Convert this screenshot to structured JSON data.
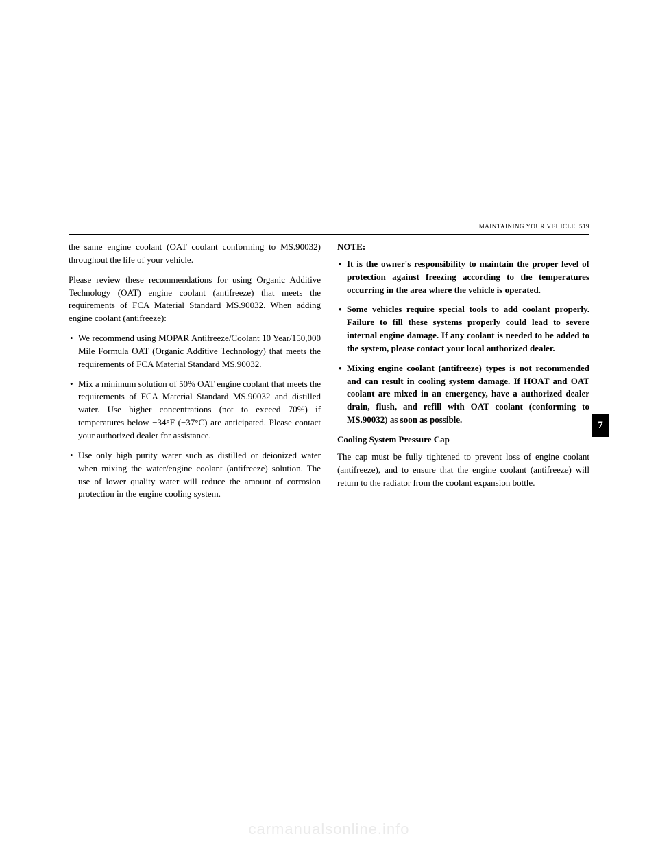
{
  "header": {
    "section": "MAINTAINING YOUR VEHICLE",
    "page": "519"
  },
  "sideTab": "7",
  "leftColumn": {
    "intro1": "the same engine coolant (OAT coolant conforming to MS.90032) throughout the life of your vehicle.",
    "intro2": "Please review these recommendations for using Organic Additive Technology (OAT) engine coolant (antifreeze) that meets the requirements of FCA Material Standard MS.90032. When adding engine coolant (antifreeze):",
    "bullets": [
      "We recommend using MOPAR Antifreeze/Coolant 10 Year/150,000 Mile Formula OAT (Organic Additive Technology) that meets the requirements of FCA Material Standard MS.90032.",
      "Mix a minimum solution of 50% OAT engine coolant that meets the requirements of FCA Material Standard MS.90032 and distilled water. Use higher concentrations (not to exceed 70%) if temperatures below −34°F (−37°C) are anticipated. Please contact your authorized dealer for assistance.",
      "Use only high purity water such as distilled or deionized water when mixing the water/engine coolant (antifreeze) solution. The use of lower quality water will reduce the amount of corrosion protection in the engine cooling system."
    ]
  },
  "rightColumn": {
    "noteLabel": "NOTE:",
    "noteBullets": [
      "It is the owner's responsibility to maintain the proper level of protection against freezing according to the temperatures occurring in the area where the vehicle is operated.",
      "Some vehicles require special tools to add coolant properly. Failure to fill these systems properly could lead to severe internal engine damage. If any coolant is needed to be added to the system, please contact your local authorized dealer.",
      "Mixing engine coolant (antifreeze) types is not recommended and can result in cooling system damage. If HOAT and OAT coolant are mixed in an emergency, have a authorized dealer drain, flush, and refill with OAT coolant (conforming to MS.90032) as soon as possible."
    ],
    "subheading": "Cooling System Pressure Cap",
    "subtext": "The cap must be fully tightened to prevent loss of engine coolant (antifreeze), and to ensure that the engine coolant (antifreeze) will return to the radiator from the coolant expansion bottle."
  },
  "watermark": "carmanualsonline.info"
}
